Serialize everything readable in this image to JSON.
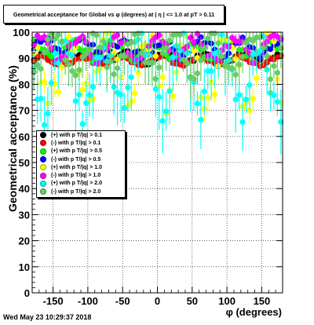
{
  "title": "Geometrical acceptance for Global vs φ (degrees) at | η | <= 1.0 at pT > 0.11",
  "footer": "Wed May 23 10:29:37 2018",
  "legend": [
    {
      "label": "(+) with p T/|q| > 0.1",
      "color": "#000000"
    },
    {
      "label": "(-) with p T/|q| > 0.1",
      "color": "#ff0000"
    },
    {
      "label": "(+) with p T/|q| > 0.5",
      "color": "#00ff00"
    },
    {
      "label": "(-) with p T/|q| > 0.5",
      "color": "#0000ff"
    },
    {
      "label": "(+) with p T/|q| > 1.0",
      "color": "#ffff00"
    },
    {
      "label": "(-) with p T/|q| > 1.0",
      "color": "#ff00ff"
    },
    {
      "label": "(+) with p T/|q| > 2.0",
      "color": "#00ffff"
    },
    {
      "label": "(-) with p T/|q| > 2.0",
      "color": "#66cc66"
    }
  ],
  "chart_data": {
    "type": "scatter",
    "title": "Geometrical acceptance for Global vs φ (degrees) at | η | <= 1.0 at pT > 0.11",
    "xlabel": "φ (degrees)",
    "ylabel": "Geometrical acceptance (%)",
    "xlim": [
      -180,
      180
    ],
    "ylim": [
      0,
      100
    ],
    "xticks": [
      -150,
      -100,
      -50,
      0,
      50,
      100,
      150
    ],
    "yticks": [
      0,
      10,
      20,
      30,
      40,
      50,
      60,
      70,
      80,
      90,
      100
    ],
    "grid": true,
    "legend_position": "middle-left",
    "series": [
      {
        "name": "(+) with p T/|q| > 0.1",
        "color": "#000000",
        "base": 90,
        "amp": 2,
        "dip": 4,
        "err": 0.4,
        "phase": 0.2
      },
      {
        "name": "(-) with p T/|q| > 0.1",
        "color": "#ff0000",
        "base": 89,
        "amp": 1.5,
        "dip": 3,
        "err": 0.4,
        "phase": 1.1
      },
      {
        "name": "(+) with p T/|q| > 0.5",
        "color": "#00ff00",
        "base": 93,
        "amp": 3,
        "dip": 9,
        "err": 1.2,
        "phase": 2.3
      },
      {
        "name": "(-) with p T/|q| > 0.5",
        "color": "#0000ff",
        "base": 94,
        "amp": 3,
        "dip": 6,
        "err": 0.8,
        "phase": 0.7
      },
      {
        "name": "(+) with p T/|q| > 1.0",
        "color": "#ffff00",
        "base": 86,
        "amp": 12,
        "dip": 30,
        "err": 4,
        "phase": 3.0
      },
      {
        "name": "(-) with p T/|q| > 1.0",
        "color": "#ff00ff",
        "base": 94,
        "amp": 4,
        "dip": 18,
        "err": 2,
        "phase": 1.7
      },
      {
        "name": "(+) with p T/|q| > 2.0",
        "color": "#00ffff",
        "base": 84,
        "amp": 14,
        "dip": 45,
        "err": 9,
        "phase": 4.1
      },
      {
        "name": "(-) with p T/|q| > 2.0",
        "color": "#66cc66",
        "base": 92,
        "amp": 7,
        "dip": 30,
        "err": 6,
        "phase": 5.2
      }
    ]
  }
}
